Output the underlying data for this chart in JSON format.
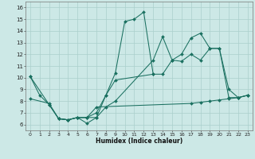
{
  "xlabel": "Humidex (Indice chaleur)",
  "xlim": [
    -0.5,
    23.5
  ],
  "ylim": [
    5.5,
    16.5
  ],
  "xticks": [
    0,
    1,
    2,
    3,
    4,
    5,
    6,
    7,
    8,
    9,
    10,
    11,
    12,
    13,
    14,
    15,
    16,
    17,
    18,
    19,
    20,
    21,
    22,
    23
  ],
  "yticks": [
    6,
    7,
    8,
    9,
    10,
    11,
    12,
    13,
    14,
    15,
    16
  ],
  "background_color": "#cce8e6",
  "grid_color": "#aacfcc",
  "line_color": "#1a7060",
  "lines": [
    {
      "x": [
        0,
        1,
        2,
        3,
        4,
        5,
        6,
        7,
        8,
        9,
        10,
        11,
        12,
        13
      ],
      "y": [
        10.1,
        8.5,
        7.7,
        6.5,
        6.4,
        6.6,
        6.1,
        6.6,
        8.5,
        10.4,
        14.8,
        15.0,
        15.6,
        10.3
      ]
    },
    {
      "x": [
        0,
        2,
        3,
        4,
        5,
        6,
        7,
        8,
        9,
        13,
        14,
        15,
        16,
        17,
        18,
        19,
        20,
        21,
        22,
        23
      ],
      "y": [
        10.1,
        7.7,
        6.5,
        6.4,
        6.6,
        6.6,
        7.0,
        8.5,
        9.8,
        10.3,
        10.3,
        11.5,
        11.4,
        12.0,
        11.5,
        12.5,
        12.5,
        9.0,
        8.3,
        8.5
      ]
    },
    {
      "x": [
        3,
        4,
        5,
        6,
        7,
        8,
        9,
        13,
        14,
        15,
        16,
        17,
        18,
        19,
        20,
        21,
        22,
        23
      ],
      "y": [
        6.5,
        6.4,
        6.6,
        6.6,
        6.6,
        7.5,
        8.0,
        11.5,
        13.5,
        11.5,
        12.0,
        13.4,
        13.8,
        12.5,
        12.5,
        8.3,
        8.3,
        8.5
      ]
    },
    {
      "x": [
        0,
        2,
        3,
        4,
        5,
        6,
        7,
        17,
        18,
        19,
        20,
        21,
        22,
        23
      ],
      "y": [
        8.2,
        7.8,
        6.5,
        6.4,
        6.6,
        6.6,
        7.5,
        7.8,
        7.9,
        8.0,
        8.1,
        8.2,
        8.3,
        8.5
      ]
    }
  ]
}
